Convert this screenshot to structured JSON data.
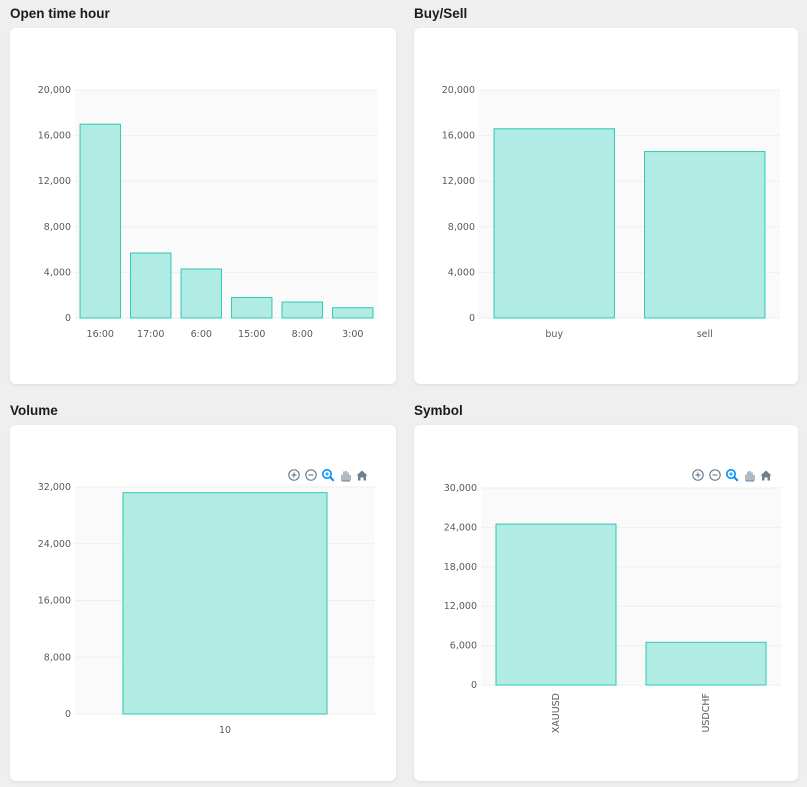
{
  "panels": [
    {
      "id": "open-time-hour",
      "title": "Open time hour",
      "toolbar": false
    },
    {
      "id": "buy-sell",
      "title": "Buy/Sell",
      "toolbar": false
    },
    {
      "id": "volume",
      "title": "Volume",
      "toolbar": true
    },
    {
      "id": "symbol",
      "title": "Symbol",
      "toolbar": true
    }
  ],
  "toolbar_icons": [
    "zoom-in-icon",
    "zoom-out-icon",
    "zoom-selection-icon",
    "pan-hand-icon",
    "home-reset-icon"
  ],
  "colors": {
    "bar_fill": "#b0ebe4",
    "bar_stroke": "#2ec9b4",
    "toolbar_icon": "#6e8192",
    "toolbar_active": "#008ffb"
  },
  "chart_data": [
    {
      "type": "bar",
      "title": "Open time hour",
      "categories": [
        "16:00",
        "17:00",
        "6:00",
        "15:00",
        "8:00",
        "3:00"
      ],
      "values": [
        17000,
        5700,
        4300,
        1800,
        1400,
        900
      ],
      "ylim": [
        0,
        20000
      ],
      "yticks": [
        "0",
        "4,000",
        "8,000",
        "12,000",
        "16,000",
        "20,000"
      ],
      "ytick_values": [
        0,
        4000,
        8000,
        12000,
        16000,
        20000
      ],
      "grid": true
    },
    {
      "type": "bar",
      "title": "Buy/Sell",
      "categories": [
        "buy",
        "sell"
      ],
      "values": [
        16600,
        14600
      ],
      "ylim": [
        0,
        20000
      ],
      "yticks": [
        "0",
        "4,000",
        "8,000",
        "12,000",
        "16,000",
        "20,000"
      ],
      "ytick_values": [
        0,
        4000,
        8000,
        12000,
        16000,
        20000
      ],
      "grid": true
    },
    {
      "type": "bar",
      "title": "Volume",
      "categories": [
        "10"
      ],
      "values": [
        31200
      ],
      "ylim": [
        0,
        32000
      ],
      "yticks": [
        "0",
        "8,000",
        "16,000",
        "24,000",
        "32,000"
      ],
      "ytick_values": [
        0,
        8000,
        16000,
        24000,
        32000
      ],
      "grid": true
    },
    {
      "type": "bar",
      "title": "Symbol",
      "categories": [
        "XAUUSD",
        "USDCHF"
      ],
      "values": [
        24500,
        6500
      ],
      "ylim": [
        0,
        30000
      ],
      "yticks": [
        "0",
        "6,000",
        "12,000",
        "18,000",
        "24,000",
        "30,000"
      ],
      "ytick_values": [
        0,
        6000,
        12000,
        18000,
        24000,
        30000
      ],
      "grid": true,
      "x_label_rotation": "vertical"
    }
  ]
}
